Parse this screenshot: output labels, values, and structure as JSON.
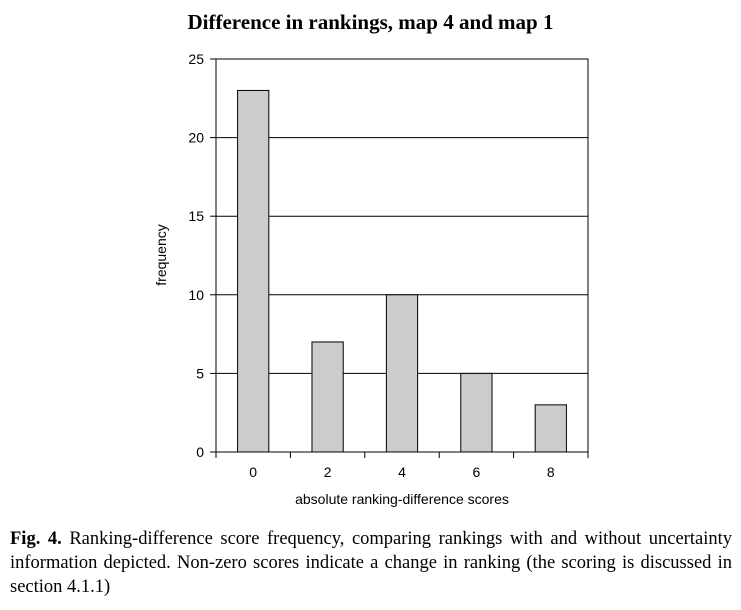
{
  "chart_data": {
    "type": "bar",
    "title": "Difference in rankings, map 4 and map 1",
    "xlabel": "absolute ranking-difference scores",
    "ylabel": "frequency",
    "categories": [
      "0",
      "2",
      "4",
      "6",
      "8"
    ],
    "values": [
      23,
      7,
      10,
      5,
      3
    ],
    "ylim": [
      0,
      25
    ],
    "yticks": [
      0,
      5,
      10,
      15,
      20,
      25
    ],
    "grid": true,
    "legend": "none",
    "bar_color": "#cccccc",
    "bar_edge_color": "#000000"
  },
  "caption": {
    "label": "Fig. 4.",
    "text": " Ranking-difference score frequency, comparing rankings with and without uncertainty information depicted. Non-zero scores indicate a change in ranking (the scoring is discussed in section 4.1.1)"
  }
}
